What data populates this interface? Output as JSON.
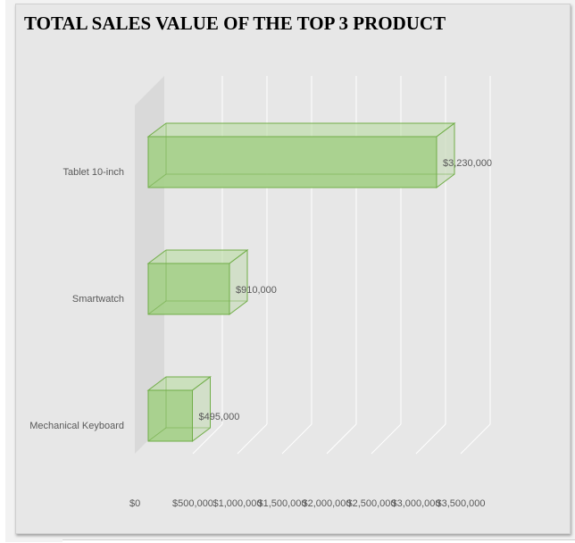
{
  "chart": {
    "title": "TOTAL SALES VALUE OF THE TOP 3 PRODUCT"
  },
  "chart_data": {
    "type": "bar",
    "orientation": "horizontal",
    "style": "3d-clustered-bar",
    "title": "TOTAL SALES VALUE OF THE TOP 3 PRODUCT",
    "categories": [
      "Tablet 10-inch",
      "Smartwatch",
      "Mechanical Keyboard"
    ],
    "values": [
      3230000,
      910000,
      495000
    ],
    "data_labels": [
      "$3,230,000",
      "$910,000",
      "$495,000"
    ],
    "xlim": [
      0,
      3500000
    ],
    "x_ticks": [
      0,
      500000,
      1000000,
      1500000,
      2000000,
      2500000,
      3000000,
      3500000
    ],
    "x_tick_labels": [
      "$0",
      "$500,000",
      "$1,000,000",
      "$1,500,000",
      "$2,000,000",
      "$2,500,000",
      "$3,000,000",
      "$3,500,000"
    ],
    "xlabel": "",
    "ylabel": "",
    "grid": true,
    "legend": "none",
    "colors": {
      "bar_front": "#a7d18b",
      "bar_top": "#b9dca2",
      "bar_side": "#c9dcbc",
      "bar_edge": "#70ad47",
      "chart_bg": "#e7e7e7",
      "wall": "#d9d9d9",
      "gridline": "#ffffff",
      "label_text": "#595959",
      "title_text": "#000000"
    }
  }
}
